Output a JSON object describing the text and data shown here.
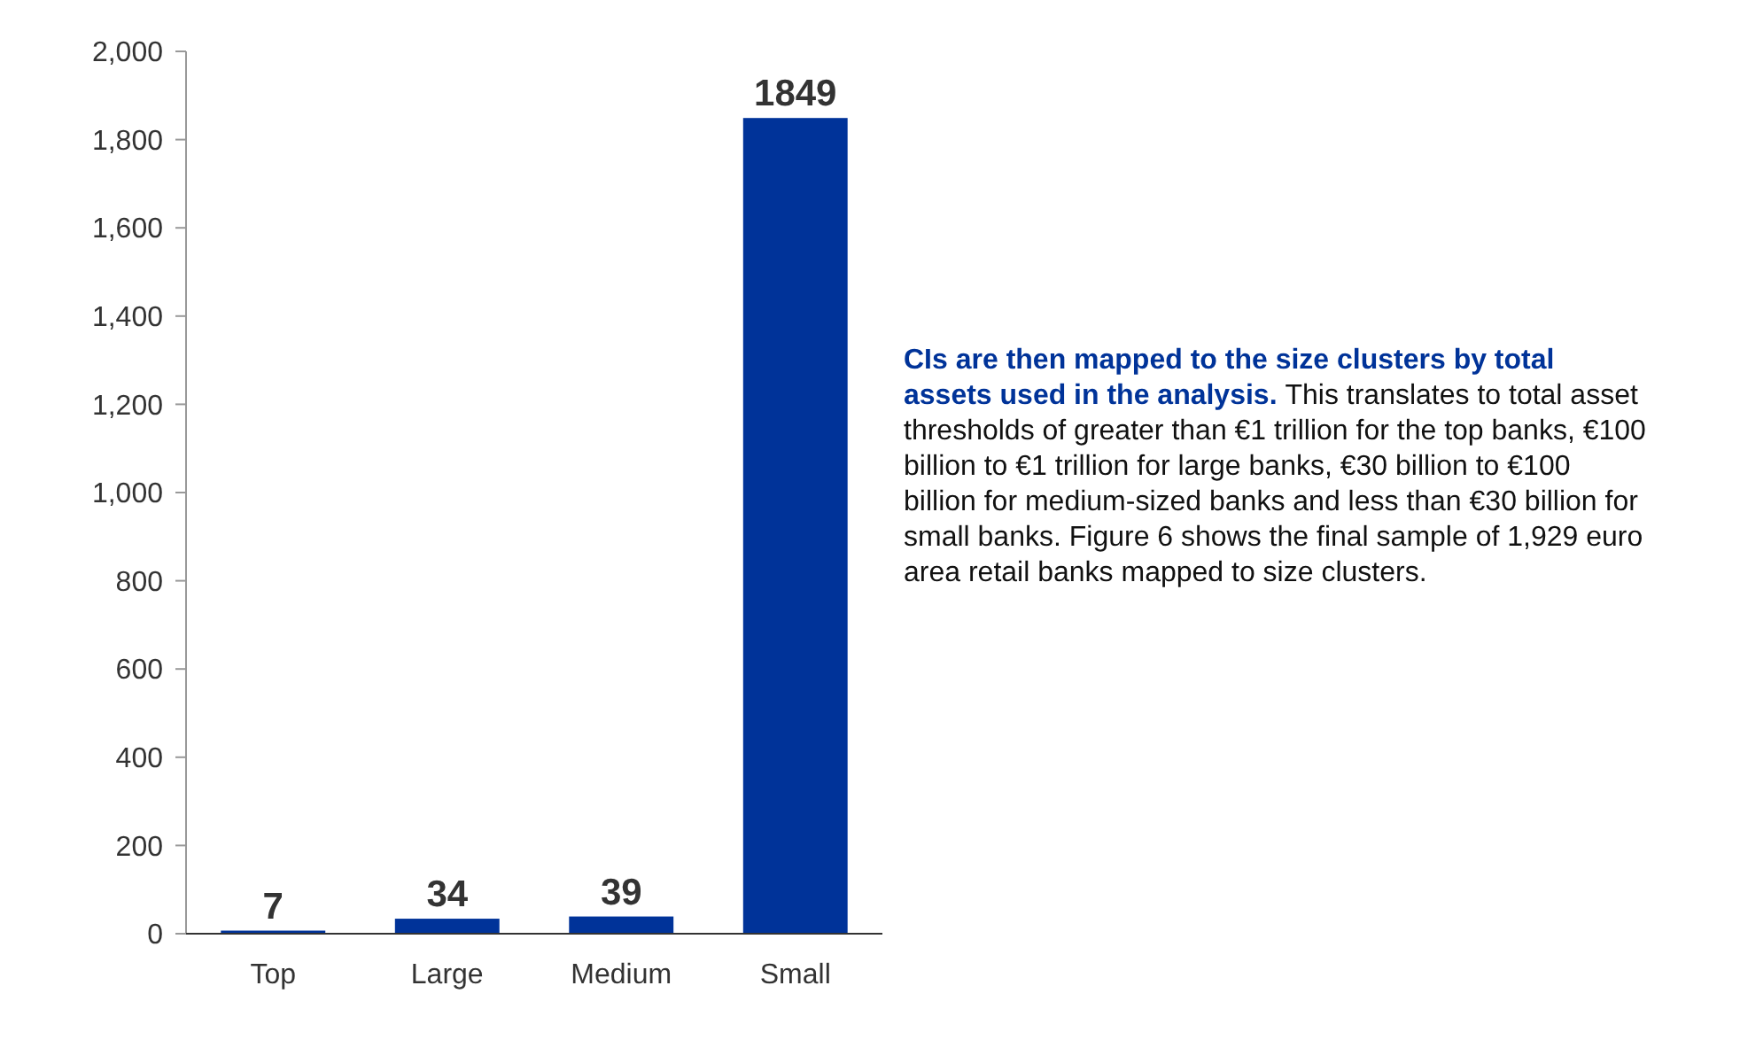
{
  "chart_data": {
    "type": "bar",
    "categories": [
      "Top",
      "Large",
      "Medium",
      "Small"
    ],
    "values": [
      7,
      34,
      39,
      1849
    ],
    "color": "#003399",
    "data_labels": true,
    "ylim": [
      0,
      2000
    ],
    "yticks": [
      0,
      200,
      400,
      600,
      800,
      {
        "value": 1000,
        "label": "1,000"
      },
      {
        "value": 1200,
        "label": "1,200"
      },
      {
        "value": 1400,
        "label": "1,400"
      },
      {
        "value": 1600,
        "label": "1,600"
      },
      {
        "value": 1800,
        "label": "1,800"
      },
      {
        "value": 2000,
        "label": "2,000"
      }
    ],
    "grid": false,
    "annotations": [
      "CIs are then mapped to the size clusters by total assets used in the analysis.",
      "This translates to total asset thresholds of greater than €1 trillion for the top banks, €100 billion to €1 trillion for large banks, €30 billion to €100 billion for medium-sized banks and less than €30 billion for small banks. Figure 6 shows the final sample of 1,929 euro area retail banks mapped to size clusters."
    ]
  }
}
